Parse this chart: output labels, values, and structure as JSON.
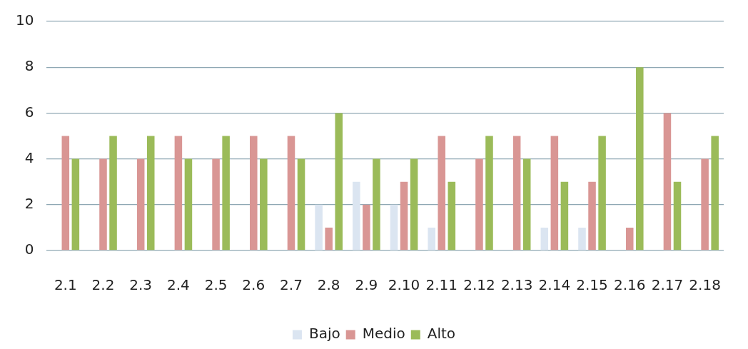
{
  "chart_data": {
    "type": "bar",
    "categories": [
      "2.1",
      "2.2",
      "2.3",
      "2.4",
      "2.5",
      "2.6",
      "2.7",
      "2.8",
      "2.9",
      "2.10",
      "2.11",
      "2.12",
      "2.13",
      "2.14",
      "2.15",
      "2.16",
      "2.17",
      "2.18"
    ],
    "series": [
      {
        "name": "Bajo",
        "color": "#dbe5f1",
        "values": [
          0,
          0,
          0,
          0,
          0,
          0,
          0,
          2,
          3,
          2,
          1,
          0,
          0,
          1,
          1,
          0,
          0,
          0
        ]
      },
      {
        "name": "Medio",
        "color": "#d99694",
        "values": [
          5,
          4,
          4,
          5,
          4,
          5,
          5,
          1,
          2,
          3,
          5,
          4,
          5,
          5,
          3,
          1,
          6,
          4
        ]
      },
      {
        "name": "Alto",
        "color": "#9bbb59",
        "values": [
          4,
          5,
          5,
          4,
          5,
          4,
          4,
          6,
          4,
          4,
          3,
          5,
          4,
          3,
          5,
          8,
          3,
          5
        ]
      }
    ],
    "ylim": [
      0,
      10
    ],
    "yticks": [
      0,
      2,
      4,
      6,
      8,
      10
    ],
    "grid": "y",
    "legend": "bottom"
  }
}
